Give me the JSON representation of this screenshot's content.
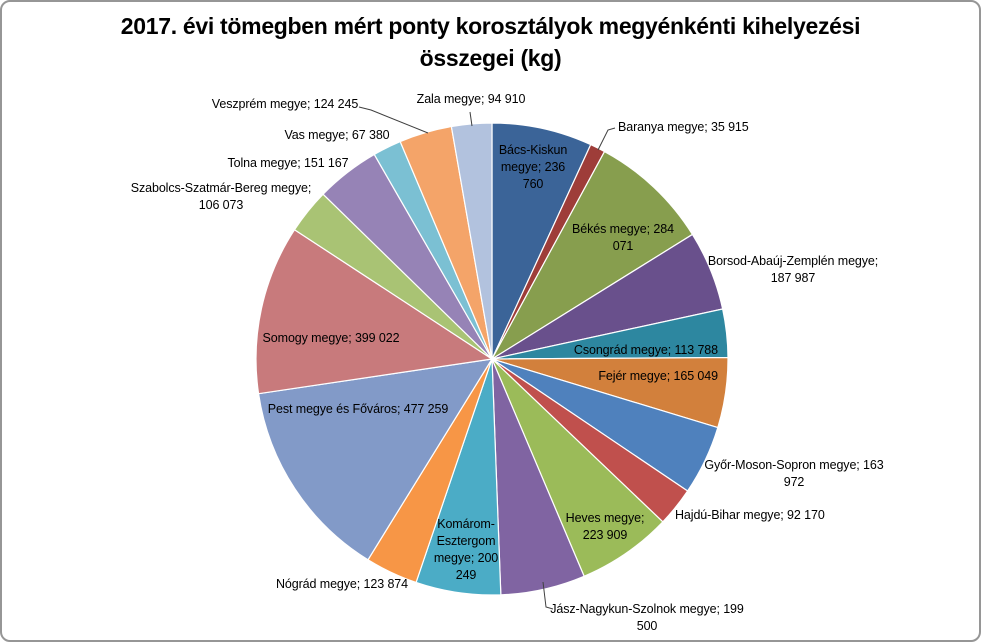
{
  "title_lines": [
    "2017. évi tömegben mért ponty korosztályok megyénkénti kihelyezési",
    "összegei (kg)"
  ],
  "chart_data": {
    "type": "pie",
    "title": "2017. évi tömegben mért ponty korosztályok megyénkénti kihelyezési összegei (kg)",
    "unit": "kg",
    "total": 3447300,
    "start_angle_deg": 0,
    "direction": "clockwise",
    "legend": "none",
    "data_label_format": "category; value",
    "categories": [
      "Bács-Kiskun megye",
      "Baranya megye",
      "Békés megye",
      "Borsod-Abaúj-Zemplén megye",
      "Csongrád megye",
      "Fejér megye",
      "Győr-Moson-Sopron megye",
      "Hajdú-Bihar megye",
      "Heves megye",
      "Jász-Nagykun-Szolnok megye",
      "Komárom-Esztergom megye",
      "Nógrád megye",
      "Pest megye és Főváros",
      "Somogy megye",
      "Szabolcs-Szatmár-Bereg megye",
      "Tolna megye",
      "Vas megye",
      "Veszprém megye",
      "Zala megye"
    ],
    "values": [
      236760,
      35915,
      284071,
      187987,
      113788,
      165049,
      163972,
      92170,
      223909,
      199500,
      200249,
      123874,
      477259,
      399022,
      106073,
      151167,
      67380,
      124245,
      94910
    ],
    "slices": [
      {
        "name": "Bács-Kiskun megye",
        "value": 236760,
        "color": "#3B6498",
        "label_placement": "inside",
        "label_lines": [
          "Bács-Kiskun",
          "megye; 236",
          "760"
        ]
      },
      {
        "name": "Baranya megye",
        "value": 35915,
        "color": "#9E3D39",
        "label_placement": "outside",
        "label_lines": [
          "Baranya megye; 35 915"
        ]
      },
      {
        "name": "Békés megye",
        "value": 284071,
        "color": "#879E4E",
        "label_placement": "inside",
        "label_lines": [
          "Békés megye; 284",
          "071"
        ]
      },
      {
        "name": "Borsod-Abaúj-Zemplén megye",
        "value": 187987,
        "color": "#69508C",
        "label_placement": "outside",
        "label_lines": [
          "Borsod-Abaúj-Zemplén megye;",
          "187 987"
        ]
      },
      {
        "name": "Csongrád megye",
        "value": 113788,
        "color": "#2D87A0",
        "label_placement": "inside",
        "label_lines": [
          "Csongrád megye; 113 788"
        ]
      },
      {
        "name": "Fejér megye",
        "value": 165049,
        "color": "#D2803C",
        "label_placement": "inside",
        "label_lines": [
          "Fejér megye; 165 049"
        ]
      },
      {
        "name": "Győr-Moson-Sopron megye",
        "value": 163972,
        "color": "#4F81BD",
        "label_placement": "outside",
        "label_lines": [
          "Győr-Moson-Sopron megye; 163",
          "972"
        ]
      },
      {
        "name": "Hajdú-Bihar megye",
        "value": 92170,
        "color": "#C0504D",
        "label_placement": "outside",
        "label_lines": [
          "Hajdú-Bihar megye; 92 170"
        ]
      },
      {
        "name": "Heves megye",
        "value": 223909,
        "color": "#9BBB59",
        "label_placement": "inside",
        "label_lines": [
          "Heves megye;",
          "223 909"
        ]
      },
      {
        "name": "Jász-Nagykun-Szolnok megye",
        "value": 199500,
        "color": "#8064A2",
        "label_placement": "outside",
        "label_lines": [
          "Jász-Nagykun-Szolnok megye; 199",
          "500"
        ]
      },
      {
        "name": "Komárom-Esztergom megye",
        "value": 200249,
        "color": "#4BACC6",
        "label_placement": "inside",
        "label_lines": [
          "Komárom-",
          "Esztergom",
          "megye; 200",
          "249"
        ]
      },
      {
        "name": "Nógrád megye",
        "value": 123874,
        "color": "#F79646",
        "label_placement": "outside",
        "label_lines": [
          "Nógrád megye; 123 874"
        ]
      },
      {
        "name": "Pest megye és Főváros",
        "value": 477259,
        "color": "#829AC8",
        "label_placement": "inside",
        "label_lines": [
          "Pest megye és Főváros; 477 259"
        ]
      },
      {
        "name": "Somogy megye",
        "value": 399022,
        "color": "#C87A7C",
        "label_placement": "inside",
        "label_lines": [
          "Somogy megye; 399 022"
        ]
      },
      {
        "name": "Szabolcs-Szatmár-Bereg megye",
        "value": 106073,
        "color": "#A9C374",
        "label_placement": "outside",
        "label_lines": [
          "Szabolcs-Szatmár-Bereg megye;",
          "106 073"
        ]
      },
      {
        "name": "Tolna megye",
        "value": 151167,
        "color": "#9683B6",
        "label_placement": "outside",
        "label_lines": [
          "Tolna megye; 151 167"
        ]
      },
      {
        "name": "Vas megye",
        "value": 67380,
        "color": "#7BC0D3",
        "label_placement": "outside",
        "label_lines": [
          "Vas megye; 67 380"
        ]
      },
      {
        "name": "Veszprém megye",
        "value": 124245,
        "color": "#F4A469",
        "label_placement": "outside",
        "label_lines": [
          "Veszprém megye; 124 245"
        ]
      },
      {
        "name": "Zala megye",
        "value": 94910,
        "color": "#B2C2DE",
        "label_placement": "outside",
        "label_lines": [
          "Zala megye; 94 910"
        ]
      }
    ]
  }
}
